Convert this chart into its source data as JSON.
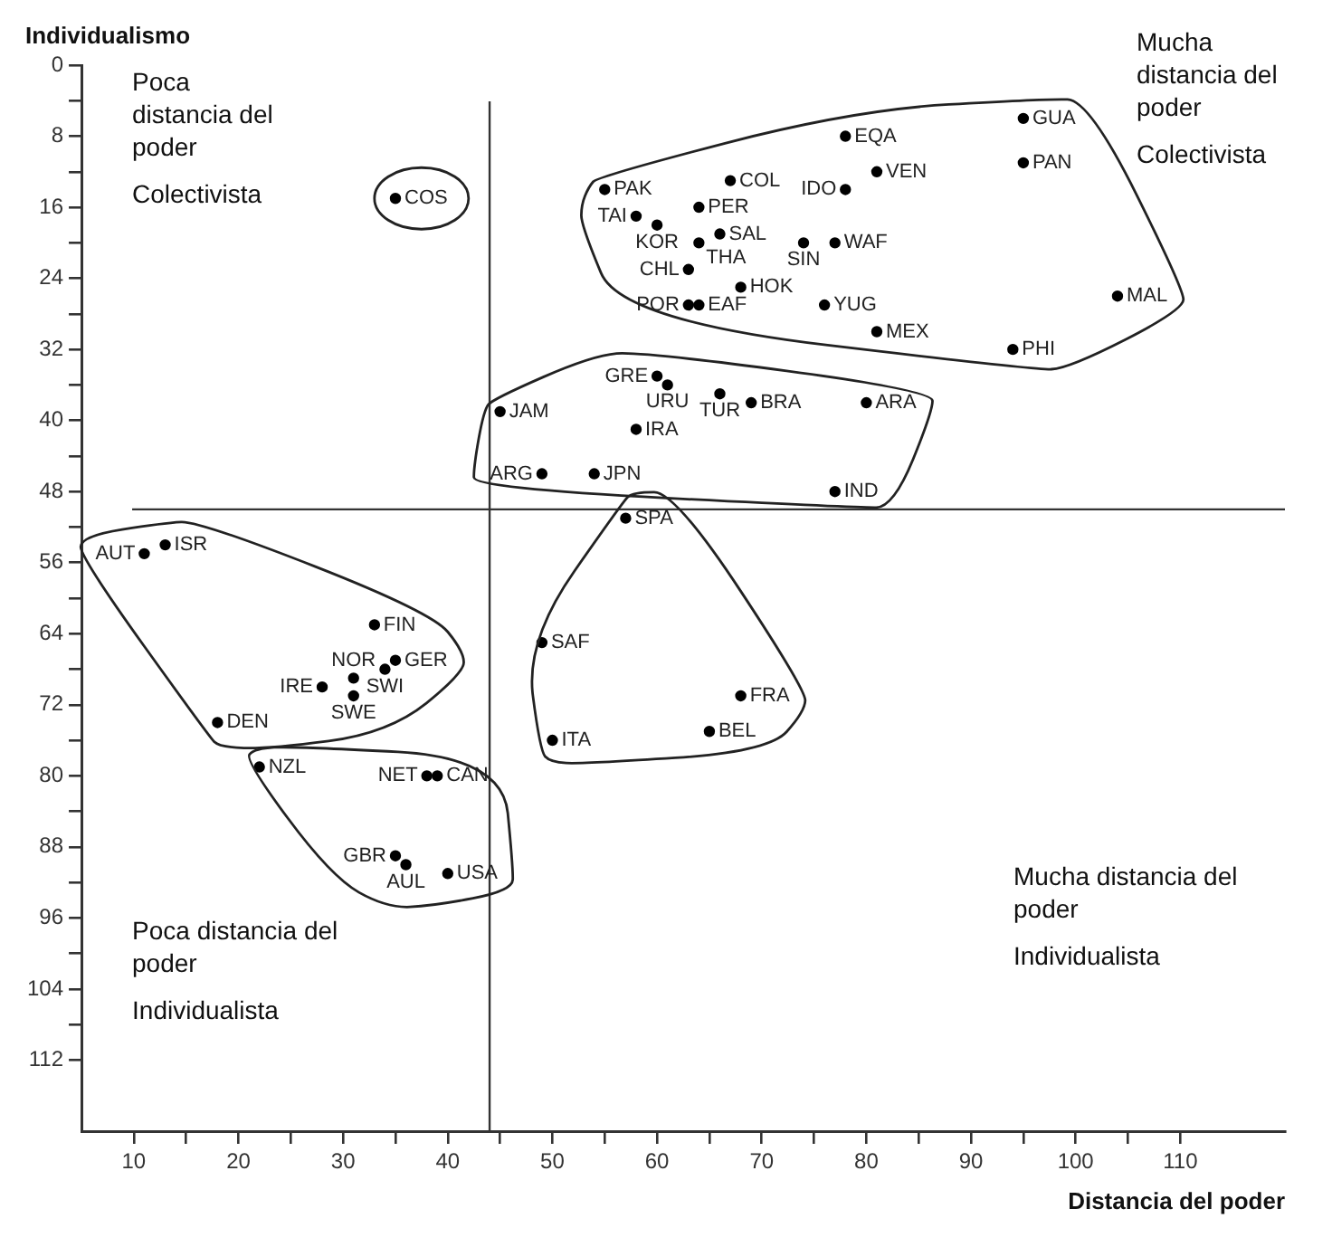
{
  "chart_data": {
    "type": "scatter",
    "xlabel": "Distancia del poder",
    "ylabel": "Individualismo",
    "xlim": [
      5,
      120
    ],
    "ylim": [
      120,
      0
    ],
    "xticks": [
      10,
      {
        "value": 15,
        "label": null
      },
      20,
      {
        "value": 25,
        "label": null
      },
      30,
      {
        "value": 35,
        "label": null
      },
      40,
      {
        "value": 45,
        "label": null
      },
      50,
      {
        "value": 55,
        "label": null
      },
      60,
      {
        "value": 65,
        "label": null
      },
      70,
      {
        "value": 75,
        "label": null
      },
      80,
      {
        "value": 85,
        "label": null
      },
      90,
      {
        "value": 95,
        "label": null
      },
      100,
      {
        "value": 105,
        "label": null
      },
      110
    ],
    "yticks": [
      0,
      {
        "value": 4,
        "label": null
      },
      8,
      {
        "value": 12,
        "label": null
      },
      16,
      {
        "value": 20,
        "label": null
      },
      24,
      {
        "value": 28,
        "label": null
      },
      32,
      {
        "value": 36,
        "label": null
      },
      40,
      {
        "value": 44,
        "label": null
      },
      48,
      {
        "value": 52,
        "label": null
      },
      56,
      {
        "value": 60,
        "label": null
      },
      64,
      {
        "value": 68,
        "label": null
      },
      72,
      {
        "value": 76,
        "label": null
      },
      80,
      {
        "value": 84,
        "label": null
      },
      88,
      {
        "value": 92,
        "label": null
      },
      96,
      {
        "value": 100,
        "label": null
      },
      104,
      {
        "value": 108,
        "label": null
      },
      112
    ],
    "grid": false,
    "legend": false,
    "marker": "circle",
    "ref_lines": [
      {
        "axis": "x",
        "value": 44
      },
      {
        "axis": "y",
        "value": 50
      }
    ],
    "annotations": [
      "Poca distancia del poder",
      "Colectivista",
      "Mucha distancia del poder",
      "Colectivista",
      "Poca distancia del poder",
      "Individualista",
      "Mucha distancia del poder",
      "Individualista"
    ],
    "series": [
      {
        "name": "COS",
        "color": "#000000",
        "x": [
          35
        ],
        "values": [
          15
        ]
      },
      {
        "name": "PAK",
        "color": "#000000",
        "x": [
          55
        ],
        "values": [
          14
        ]
      },
      {
        "name": "COL",
        "color": "#000000",
        "x": [
          67
        ],
        "values": [
          13
        ]
      },
      {
        "name": "EQA",
        "color": "#000000",
        "x": [
          78
        ],
        "values": [
          8
        ]
      },
      {
        "name": "VEN",
        "color": "#000000",
        "x": [
          81
        ],
        "values": [
          12
        ]
      },
      {
        "name": "IDO",
        "color": "#000000",
        "x": [
          78
        ],
        "values": [
          14
        ]
      },
      {
        "name": "GUA",
        "color": "#000000",
        "x": [
          95
        ],
        "values": [
          6
        ]
      },
      {
        "name": "PAN",
        "color": "#000000",
        "x": [
          95
        ],
        "values": [
          11
        ]
      },
      {
        "name": "PER",
        "color": "#000000",
        "x": [
          64
        ],
        "values": [
          16
        ]
      },
      {
        "name": "TAI",
        "color": "#000000",
        "x": [
          58
        ],
        "values": [
          17
        ]
      },
      {
        "name": "KOR",
        "color": "#000000",
        "x": [
          60
        ],
        "values": [
          18
        ]
      },
      {
        "name": "SAL",
        "color": "#000000",
        "x": [
          66
        ],
        "values": [
          19
        ]
      },
      {
        "name": "SIN",
        "color": "#000000",
        "x": [
          74
        ],
        "values": [
          20
        ]
      },
      {
        "name": "WAF",
        "color": "#000000",
        "x": [
          77
        ],
        "values": [
          20
        ]
      },
      {
        "name": "THA",
        "color": "#000000",
        "x": [
          64
        ],
        "values": [
          20
        ]
      },
      {
        "name": "CHL",
        "color": "#000000",
        "x": [
          63
        ],
        "values": [
          23
        ]
      },
      {
        "name": "HOK",
        "color": "#000000",
        "x": [
          68
        ],
        "values": [
          25
        ]
      },
      {
        "name": "POR",
        "color": "#000000",
        "x": [
          63
        ],
        "values": [
          27
        ]
      },
      {
        "name": "EAF",
        "color": "#000000",
        "x": [
          64
        ],
        "values": [
          27
        ]
      },
      {
        "name": "YUG",
        "color": "#000000",
        "x": [
          76
        ],
        "values": [
          27
        ]
      },
      {
        "name": "MEX",
        "color": "#000000",
        "x": [
          81
        ],
        "values": [
          30
        ]
      },
      {
        "name": "PHI",
        "color": "#000000",
        "x": [
          94
        ],
        "values": [
          32
        ]
      },
      {
        "name": "MAL",
        "color": "#000000",
        "x": [
          104
        ],
        "values": [
          26
        ]
      },
      {
        "name": "JAM",
        "color": "#000000",
        "x": [
          45
        ],
        "values": [
          39
        ]
      },
      {
        "name": "GRE",
        "color": "#000000",
        "x": [
          60
        ],
        "values": [
          35
        ]
      },
      {
        "name": "URU",
        "color": "#000000",
        "x": [
          61
        ],
        "values": [
          36
        ]
      },
      {
        "name": "TUR",
        "color": "#000000",
        "x": [
          66
        ],
        "values": [
          37
        ]
      },
      {
        "name": "BRA",
        "color": "#000000",
        "x": [
          69
        ],
        "values": [
          38
        ]
      },
      {
        "name": "ARA",
        "color": "#000000",
        "x": [
          80
        ],
        "values": [
          38
        ]
      },
      {
        "name": "IRA",
        "color": "#000000",
        "x": [
          58
        ],
        "values": [
          41
        ]
      },
      {
        "name": "ARG",
        "color": "#000000",
        "x": [
          49
        ],
        "values": [
          46
        ]
      },
      {
        "name": "JPN",
        "color": "#000000",
        "x": [
          54
        ],
        "values": [
          46
        ]
      },
      {
        "name": "IND",
        "color": "#000000",
        "x": [
          77
        ],
        "values": [
          48
        ]
      },
      {
        "name": "SPA",
        "color": "#000000",
        "x": [
          57
        ],
        "values": [
          51
        ]
      },
      {
        "name": "SAF",
        "color": "#000000",
        "x": [
          49
        ],
        "values": [
          65
        ]
      },
      {
        "name": "FRA",
        "color": "#000000",
        "x": [
          68
        ],
        "values": [
          71
        ]
      },
      {
        "name": "BEL",
        "color": "#000000",
        "x": [
          65
        ],
        "values": [
          75
        ]
      },
      {
        "name": "ITA",
        "color": "#000000",
        "x": [
          50
        ],
        "values": [
          76
        ]
      },
      {
        "name": "AUT",
        "color": "#000000",
        "x": [
          11
        ],
        "values": [
          55
        ]
      },
      {
        "name": "ISR",
        "color": "#000000",
        "x": [
          13
        ],
        "values": [
          54
        ]
      },
      {
        "name": "FIN",
        "color": "#000000",
        "x": [
          33
        ],
        "values": [
          63
        ]
      },
      {
        "name": "GER",
        "color": "#000000",
        "x": [
          35
        ],
        "values": [
          67
        ]
      },
      {
        "name": "NOR",
        "color": "#000000",
        "x": [
          31
        ],
        "values": [
          69
        ]
      },
      {
        "name": "SWI",
        "color": "#000000",
        "x": [
          34
        ],
        "values": [
          68
        ]
      },
      {
        "name": "IRE",
        "color": "#000000",
        "x": [
          28
        ],
        "values": [
          70
        ]
      },
      {
        "name": "SWE",
        "color": "#000000",
        "x": [
          31
        ],
        "values": [
          71
        ]
      },
      {
        "name": "DEN",
        "color": "#000000",
        "x": [
          18
        ],
        "values": [
          74
        ]
      },
      {
        "name": "NZL",
        "color": "#000000",
        "x": [
          22
        ],
        "values": [
          79
        ]
      },
      {
        "name": "NET",
        "color": "#000000",
        "x": [
          38
        ],
        "values": [
          80
        ]
      },
      {
        "name": "CAN",
        "color": "#000000",
        "x": [
          39
        ],
        "values": [
          80
        ]
      },
      {
        "name": "GBR",
        "color": "#000000",
        "x": [
          35
        ],
        "values": [
          89
        ]
      },
      {
        "name": "AUL",
        "color": "#000000",
        "x": [
          36
        ],
        "values": [
          90
        ]
      },
      {
        "name": "USA",
        "color": "#000000",
        "x": [
          40
        ],
        "values": [
          91
        ]
      }
    ]
  }
}
